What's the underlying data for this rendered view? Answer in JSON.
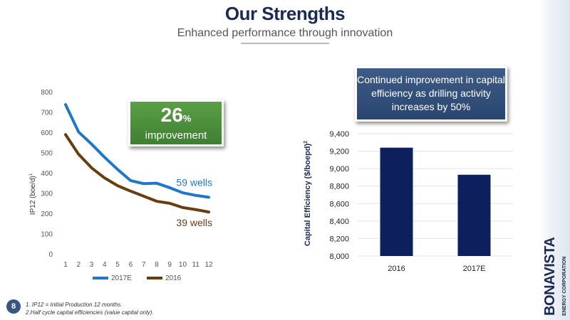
{
  "header": {
    "title": "Our Strengths",
    "subtitle": "Enhanced performance through innovation"
  },
  "callouts": {
    "improvement_value": "26",
    "improvement_unit": "%",
    "improvement_label": "improvement",
    "capital_note": "Continued improvement in capital efficiency as drilling activity increases by 50%"
  },
  "brand": {
    "name": "BONAVISTA",
    "tagline": "ENERGY CORPORATION"
  },
  "footer": {
    "page_number": "8",
    "footnote_1": "1. IP12 = Initial Production 12 months.",
    "footnote_2": "2.Half cycle capital efficiencies (value capital only)."
  },
  "colors": {
    "series_2017e": "#1f77c9",
    "series_2016": "#6a3d0f",
    "bar": "#0d1f5c",
    "title": "#1b2a55"
  },
  "chart_data": [
    {
      "type": "line",
      "title": "",
      "xlabel": "",
      "ylabel": "IP12 (boe/d)",
      "ylabel_sup": "1",
      "x": [
        1,
        2,
        3,
        4,
        5,
        6,
        7,
        8,
        9,
        10,
        11,
        12
      ],
      "xticks": [
        "1",
        "2",
        "3",
        "4",
        "5",
        "6",
        "7",
        "8",
        "9",
        "10",
        "11",
        "12"
      ],
      "ylim": [
        0,
        800
      ],
      "yticks": [
        "0",
        "100",
        "200",
        "300",
        "400",
        "500",
        "600",
        "700",
        "800"
      ],
      "grid": false,
      "legend": "bottom",
      "series": [
        {
          "name": "2017E",
          "values": [
            740,
            605,
            545,
            480,
            420,
            365,
            350,
            352,
            330,
            305,
            292,
            283
          ],
          "end_label": "59 wells"
        },
        {
          "name": "2016",
          "values": [
            592,
            495,
            428,
            378,
            340,
            313,
            288,
            263,
            253,
            232,
            222,
            210
          ],
          "end_label": "39 wells"
        }
      ]
    },
    {
      "type": "bar",
      "title": "",
      "xlabel": "",
      "ylabel": "Capital Efficiency ($/boepd)",
      "ylabel_sup": "2",
      "categories": [
        "2016",
        "2017E"
      ],
      "values": [
        9240,
        8930
      ],
      "ylim": [
        8000,
        9400
      ],
      "yticks": [
        "8,000",
        "8,200",
        "8,400",
        "8,600",
        "8,800",
        "9,000",
        "9,200",
        "9,400"
      ],
      "grid": true,
      "legend": "none"
    }
  ]
}
